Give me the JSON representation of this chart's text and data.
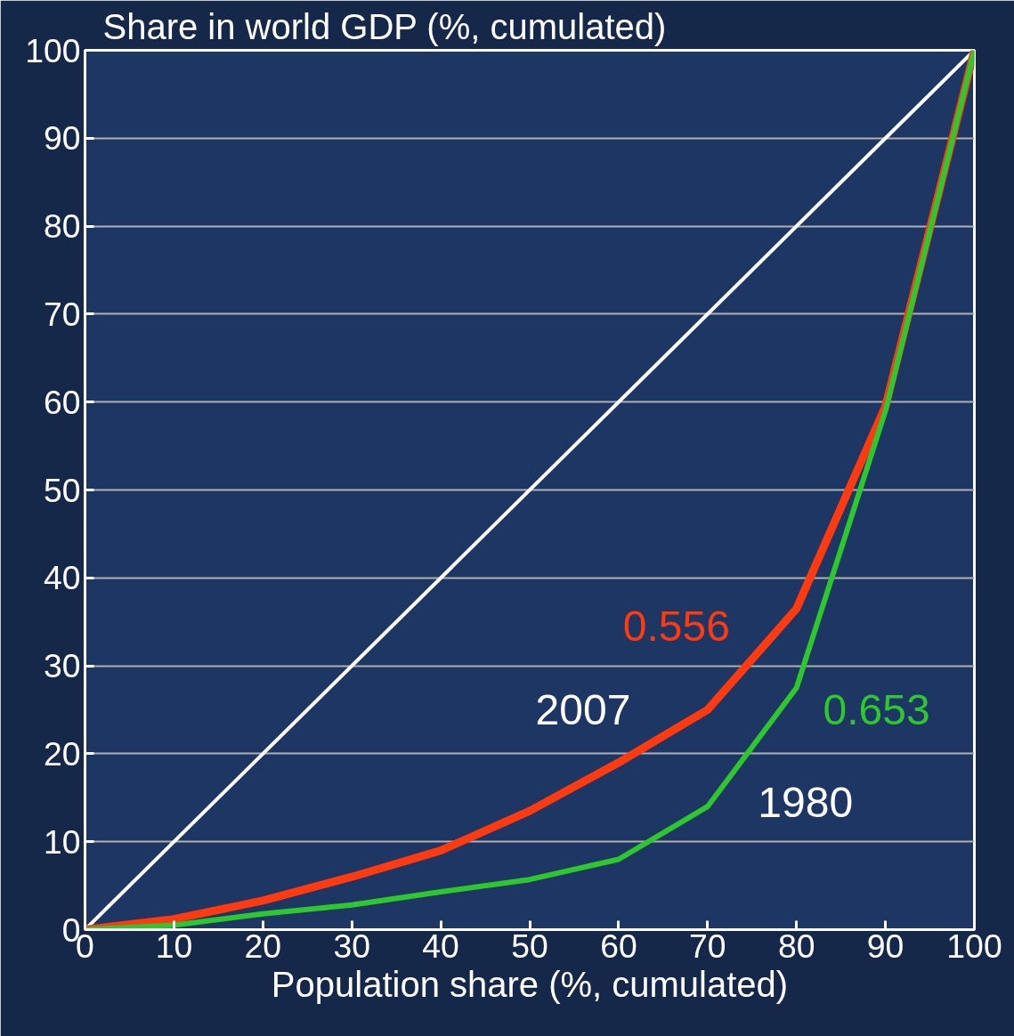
{
  "chart_data": {
    "type": "line",
    "title": "Share in world GDP (%, cumulated)",
    "xlabel": "Population share (%, cumulated)",
    "x": [
      0,
      10,
      20,
      30,
      40,
      50,
      60,
      70,
      80,
      90,
      100
    ],
    "series": [
      {
        "color": "#ffffff",
        "x": [
          0,
          100
        ],
        "values": [
          0,
          100
        ]
      },
      {
        "name": "2007",
        "color": "#ff3a10",
        "values": [
          0,
          1.2,
          3.3,
          6,
          9,
          13.5,
          19,
          25,
          36.5,
          59.5,
          100
        ]
      },
      {
        "name": "1980",
        "color": "#2ec82e",
        "values": [
          0,
          0.5,
          1.8,
          2.8,
          4.3,
          5.7,
          8,
          14,
          27.5,
          59,
          100
        ]
      }
    ],
    "annotations": [
      "0.556",
      "0.653"
    ],
    "xlim": [
      0,
      100
    ],
    "ylim": [
      0,
      100
    ],
    "xticks": [
      0,
      10,
      20,
      30,
      40,
      50,
      60,
      70,
      80,
      90,
      100
    ],
    "yticks": [
      0,
      10,
      20,
      30,
      40,
      50,
      60,
      70,
      80,
      90,
      100
    ],
    "grid": "y",
    "marker": "none",
    "line_style": "solid"
  }
}
